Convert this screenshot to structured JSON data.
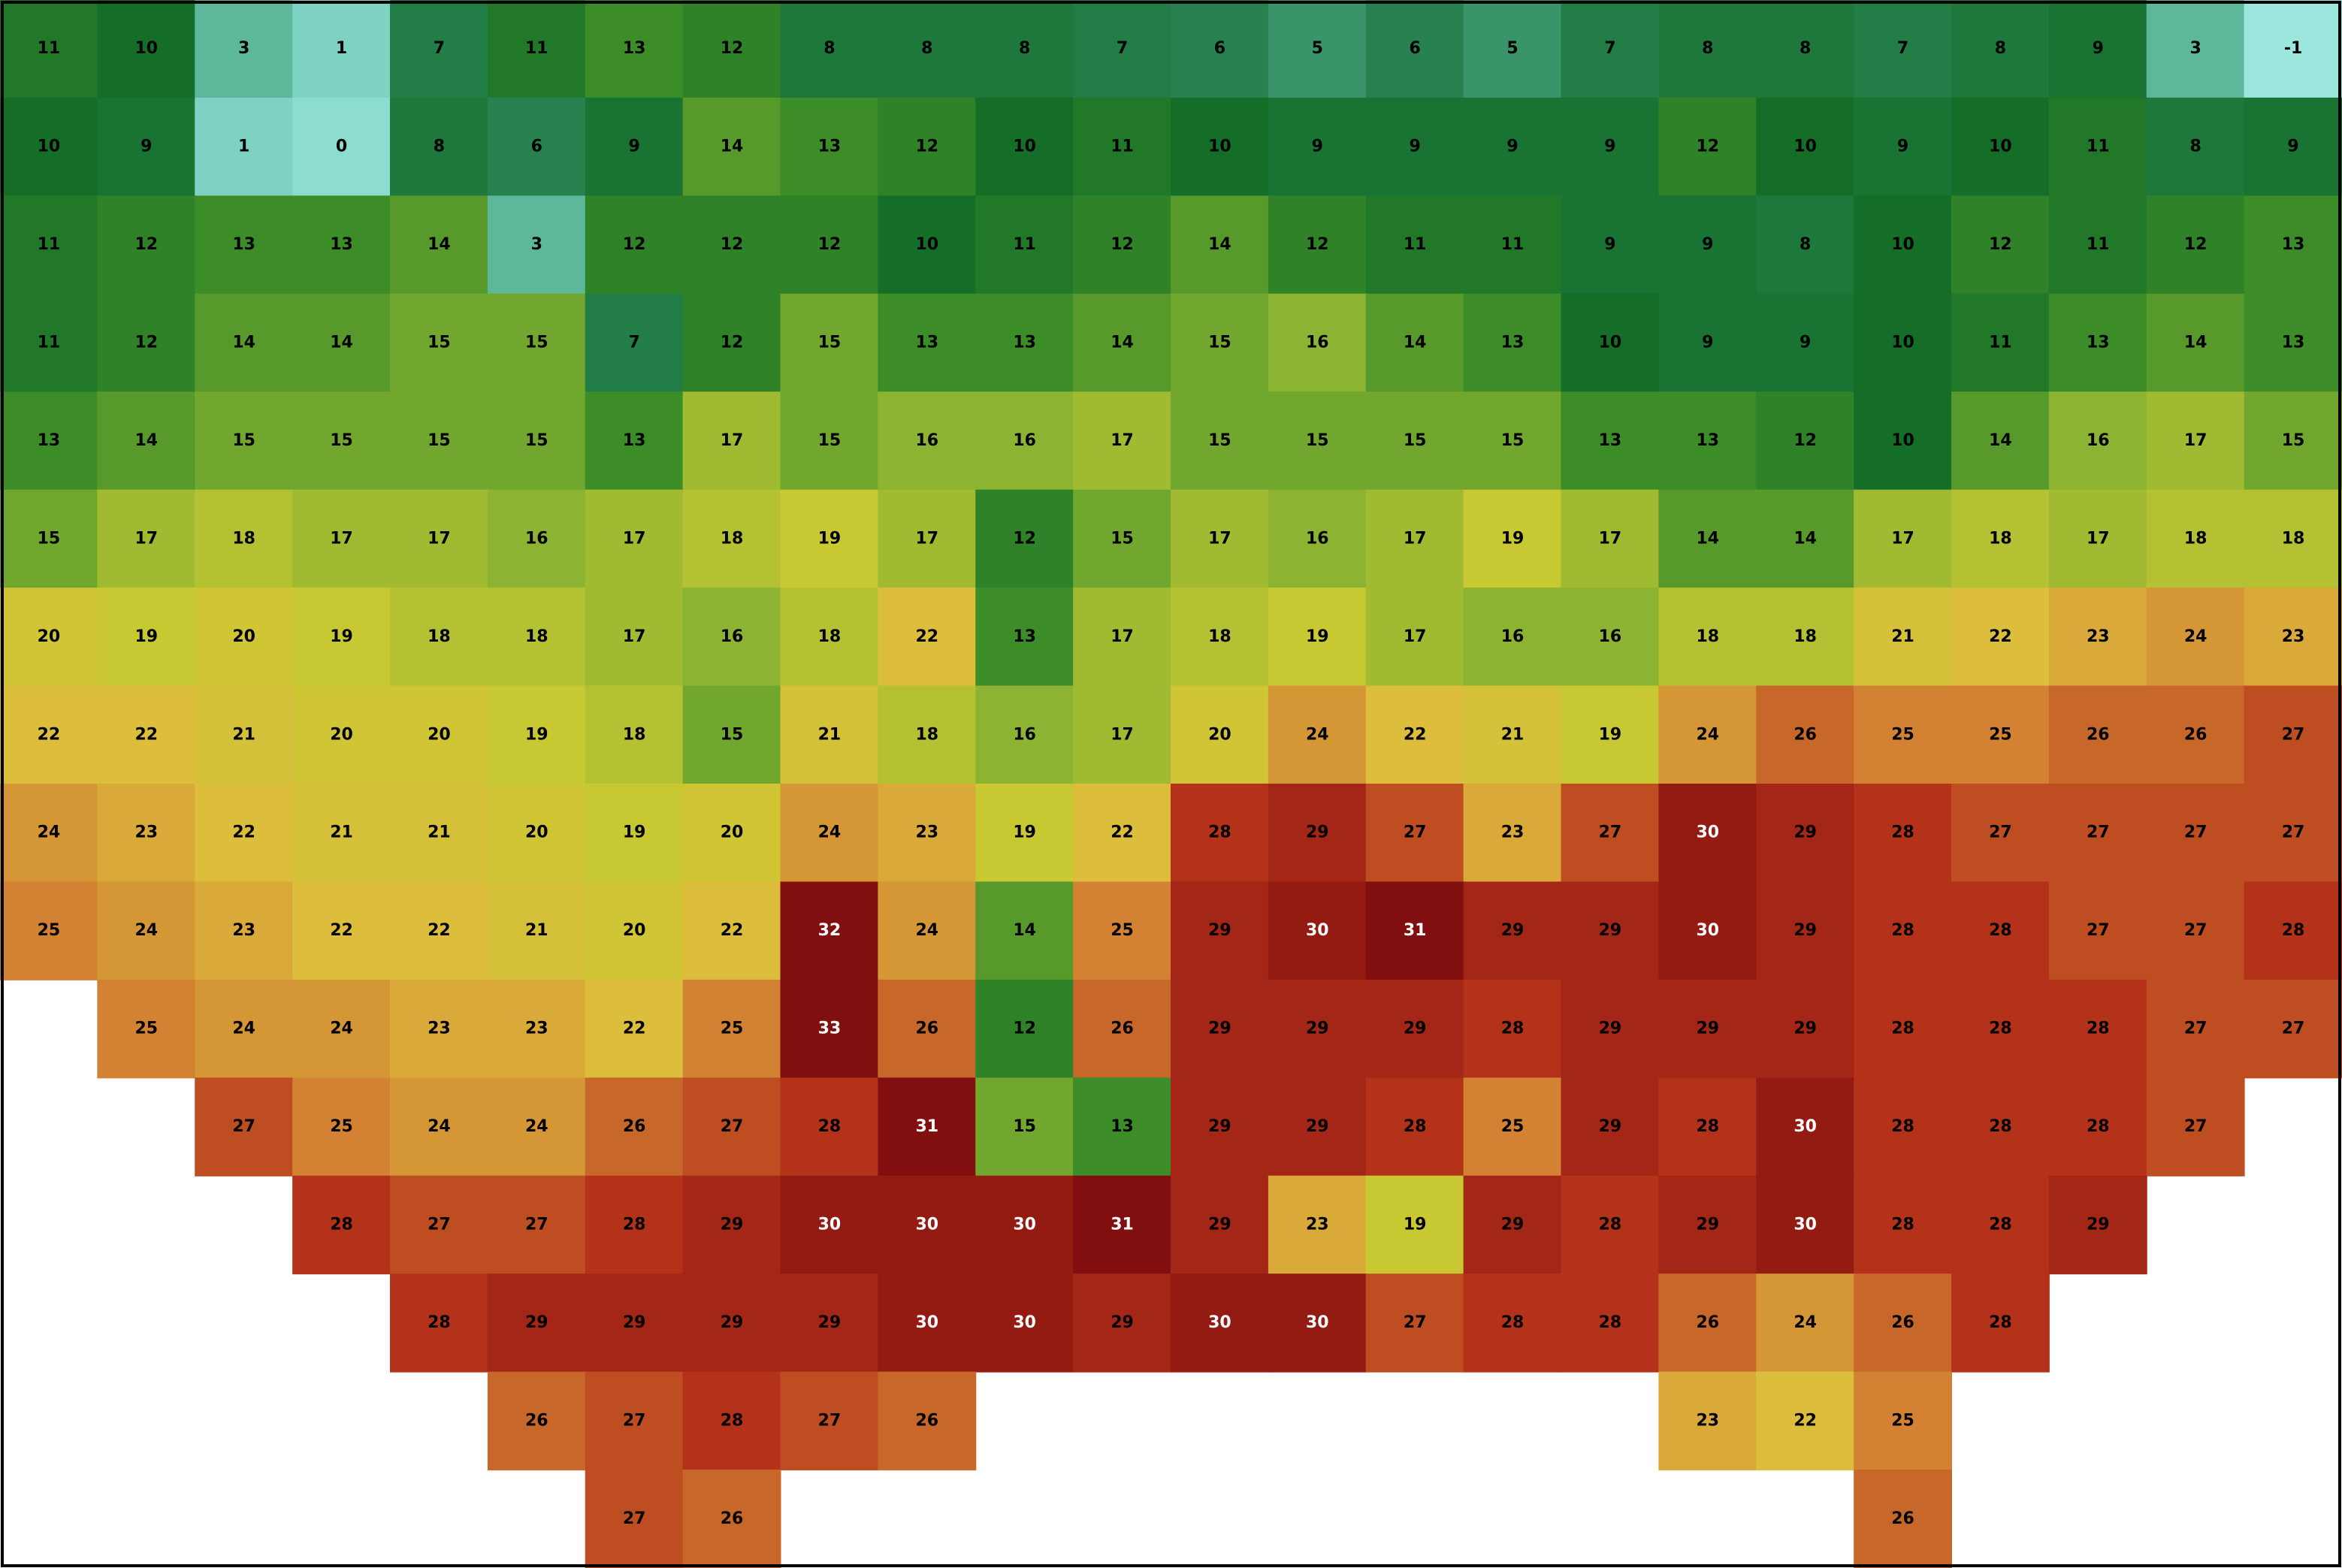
{
  "map": {
    "temperature_grid": [
      [
        11,
        10,
        3,
        1,
        7,
        11,
        13,
        12,
        8,
        8,
        8,
        7,
        6,
        5,
        6,
        5,
        7,
        8,
        8,
        7,
        8,
        9,
        3,
        -1
      ],
      [
        10,
        9,
        1,
        0,
        8,
        6,
        9,
        14,
        13,
        12,
        10,
        11,
        10,
        9,
        9,
        9,
        9,
        12,
        10,
        9,
        10,
        11,
        8,
        9
      ],
      [
        11,
        12,
        13,
        13,
        14,
        3,
        12,
        12,
        12,
        10,
        11,
        12,
        14,
        12,
        11,
        11,
        9,
        9,
        8,
        10,
        12,
        11,
        12,
        13
      ],
      [
        11,
        12,
        14,
        14,
        15,
        15,
        7,
        12,
        15,
        13,
        13,
        14,
        15,
        16,
        14,
        13,
        10,
        9,
        9,
        10,
        11,
        13,
        14,
        13
      ],
      [
        13,
        14,
        15,
        15,
        15,
        15,
        13,
        17,
        15,
        16,
        16,
        17,
        15,
        15,
        15,
        15,
        13,
        13,
        12,
        10,
        14,
        16,
        17,
        15
      ],
      [
        15,
        17,
        18,
        17,
        17,
        16,
        17,
        18,
        19,
        17,
        12,
        15,
        17,
        16,
        17,
        19,
        17,
        14,
        14,
        17,
        18,
        17,
        18,
        18
      ],
      [
        20,
        19,
        20,
        19,
        18,
        18,
        17,
        16,
        18,
        22,
        13,
        17,
        18,
        19,
        17,
        16,
        16,
        18,
        18,
        21,
        22,
        23,
        24,
        23
      ],
      [
        22,
        22,
        21,
        20,
        20,
        19,
        18,
        15,
        21,
        18,
        16,
        17,
        20,
        24,
        22,
        21,
        19,
        24,
        26,
        25,
        25,
        26,
        26,
        27
      ],
      [
        24,
        23,
        22,
        21,
        21,
        20,
        19,
        20,
        24,
        23,
        19,
        22,
        28,
        29,
        27,
        23,
        27,
        30,
        29,
        28,
        27,
        27,
        27,
        27
      ],
      [
        25,
        24,
        23,
        22,
        22,
        21,
        20,
        22,
        32,
        24,
        14,
        25,
        29,
        30,
        31,
        29,
        29,
        30,
        29,
        28,
        28,
        27,
        27,
        28
      ],
      [
        null,
        25,
        24,
        24,
        23,
        23,
        22,
        25,
        33,
        26,
        12,
        26,
        29,
        29,
        29,
        28,
        29,
        29,
        29,
        28,
        28,
        28,
        27,
        27
      ],
      [
        null,
        null,
        27,
        25,
        24,
        24,
        26,
        27,
        28,
        31,
        15,
        13,
        29,
        29,
        28,
        25,
        29,
        28,
        30,
        28,
        28,
        28,
        27,
        null
      ],
      [
        null,
        null,
        null,
        28,
        27,
        27,
        28,
        29,
        30,
        30,
        30,
        31,
        29,
        23,
        19,
        29,
        28,
        29,
        30,
        28,
        28,
        29,
        null,
        null
      ],
      [
        null,
        null,
        null,
        null,
        28,
        29,
        29,
        29,
        29,
        30,
        30,
        29,
        30,
        30,
        27,
        28,
        28,
        26,
        24,
        26,
        28,
        null,
        null,
        null
      ],
      [
        null,
        null,
        null,
        null,
        null,
        26,
        27,
        28,
        27,
        26,
        null,
        null,
        null,
        null,
        null,
        null,
        null,
        23,
        22,
        25,
        null,
        null,
        null,
        null
      ],
      [
        null,
        null,
        null,
        null,
        null,
        null,
        27,
        26,
        null,
        null,
        null,
        null,
        null,
        null,
        null,
        null,
        null,
        null,
        null,
        26,
        null,
        null,
        null,
        null
      ]
    ]
  }
}
